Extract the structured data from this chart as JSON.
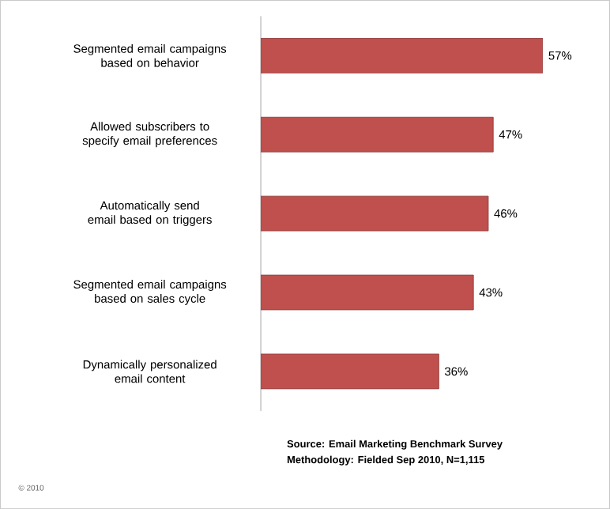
{
  "chart_data": {
    "type": "bar",
    "orientation": "horizontal",
    "categories": [
      "Segmented email campaigns based on behavior",
      "Allowed subscribers to specify email preferences",
      "Automatically send email based on triggers",
      "Segmented email campaigns based on sales cycle",
      "Dynamically personalized email content"
    ],
    "values": [
      57,
      47,
      46,
      43,
      36
    ],
    "value_labels": [
      "57%",
      "47%",
      "46%",
      "43%",
      "36%"
    ],
    "color": "#c0504d",
    "annotations": [
      "© 2010",
      "Source: Email Marketing Benchmark Survey",
      "Methodology: Fielded Sep 2010, N=1,115"
    ]
  }
}
